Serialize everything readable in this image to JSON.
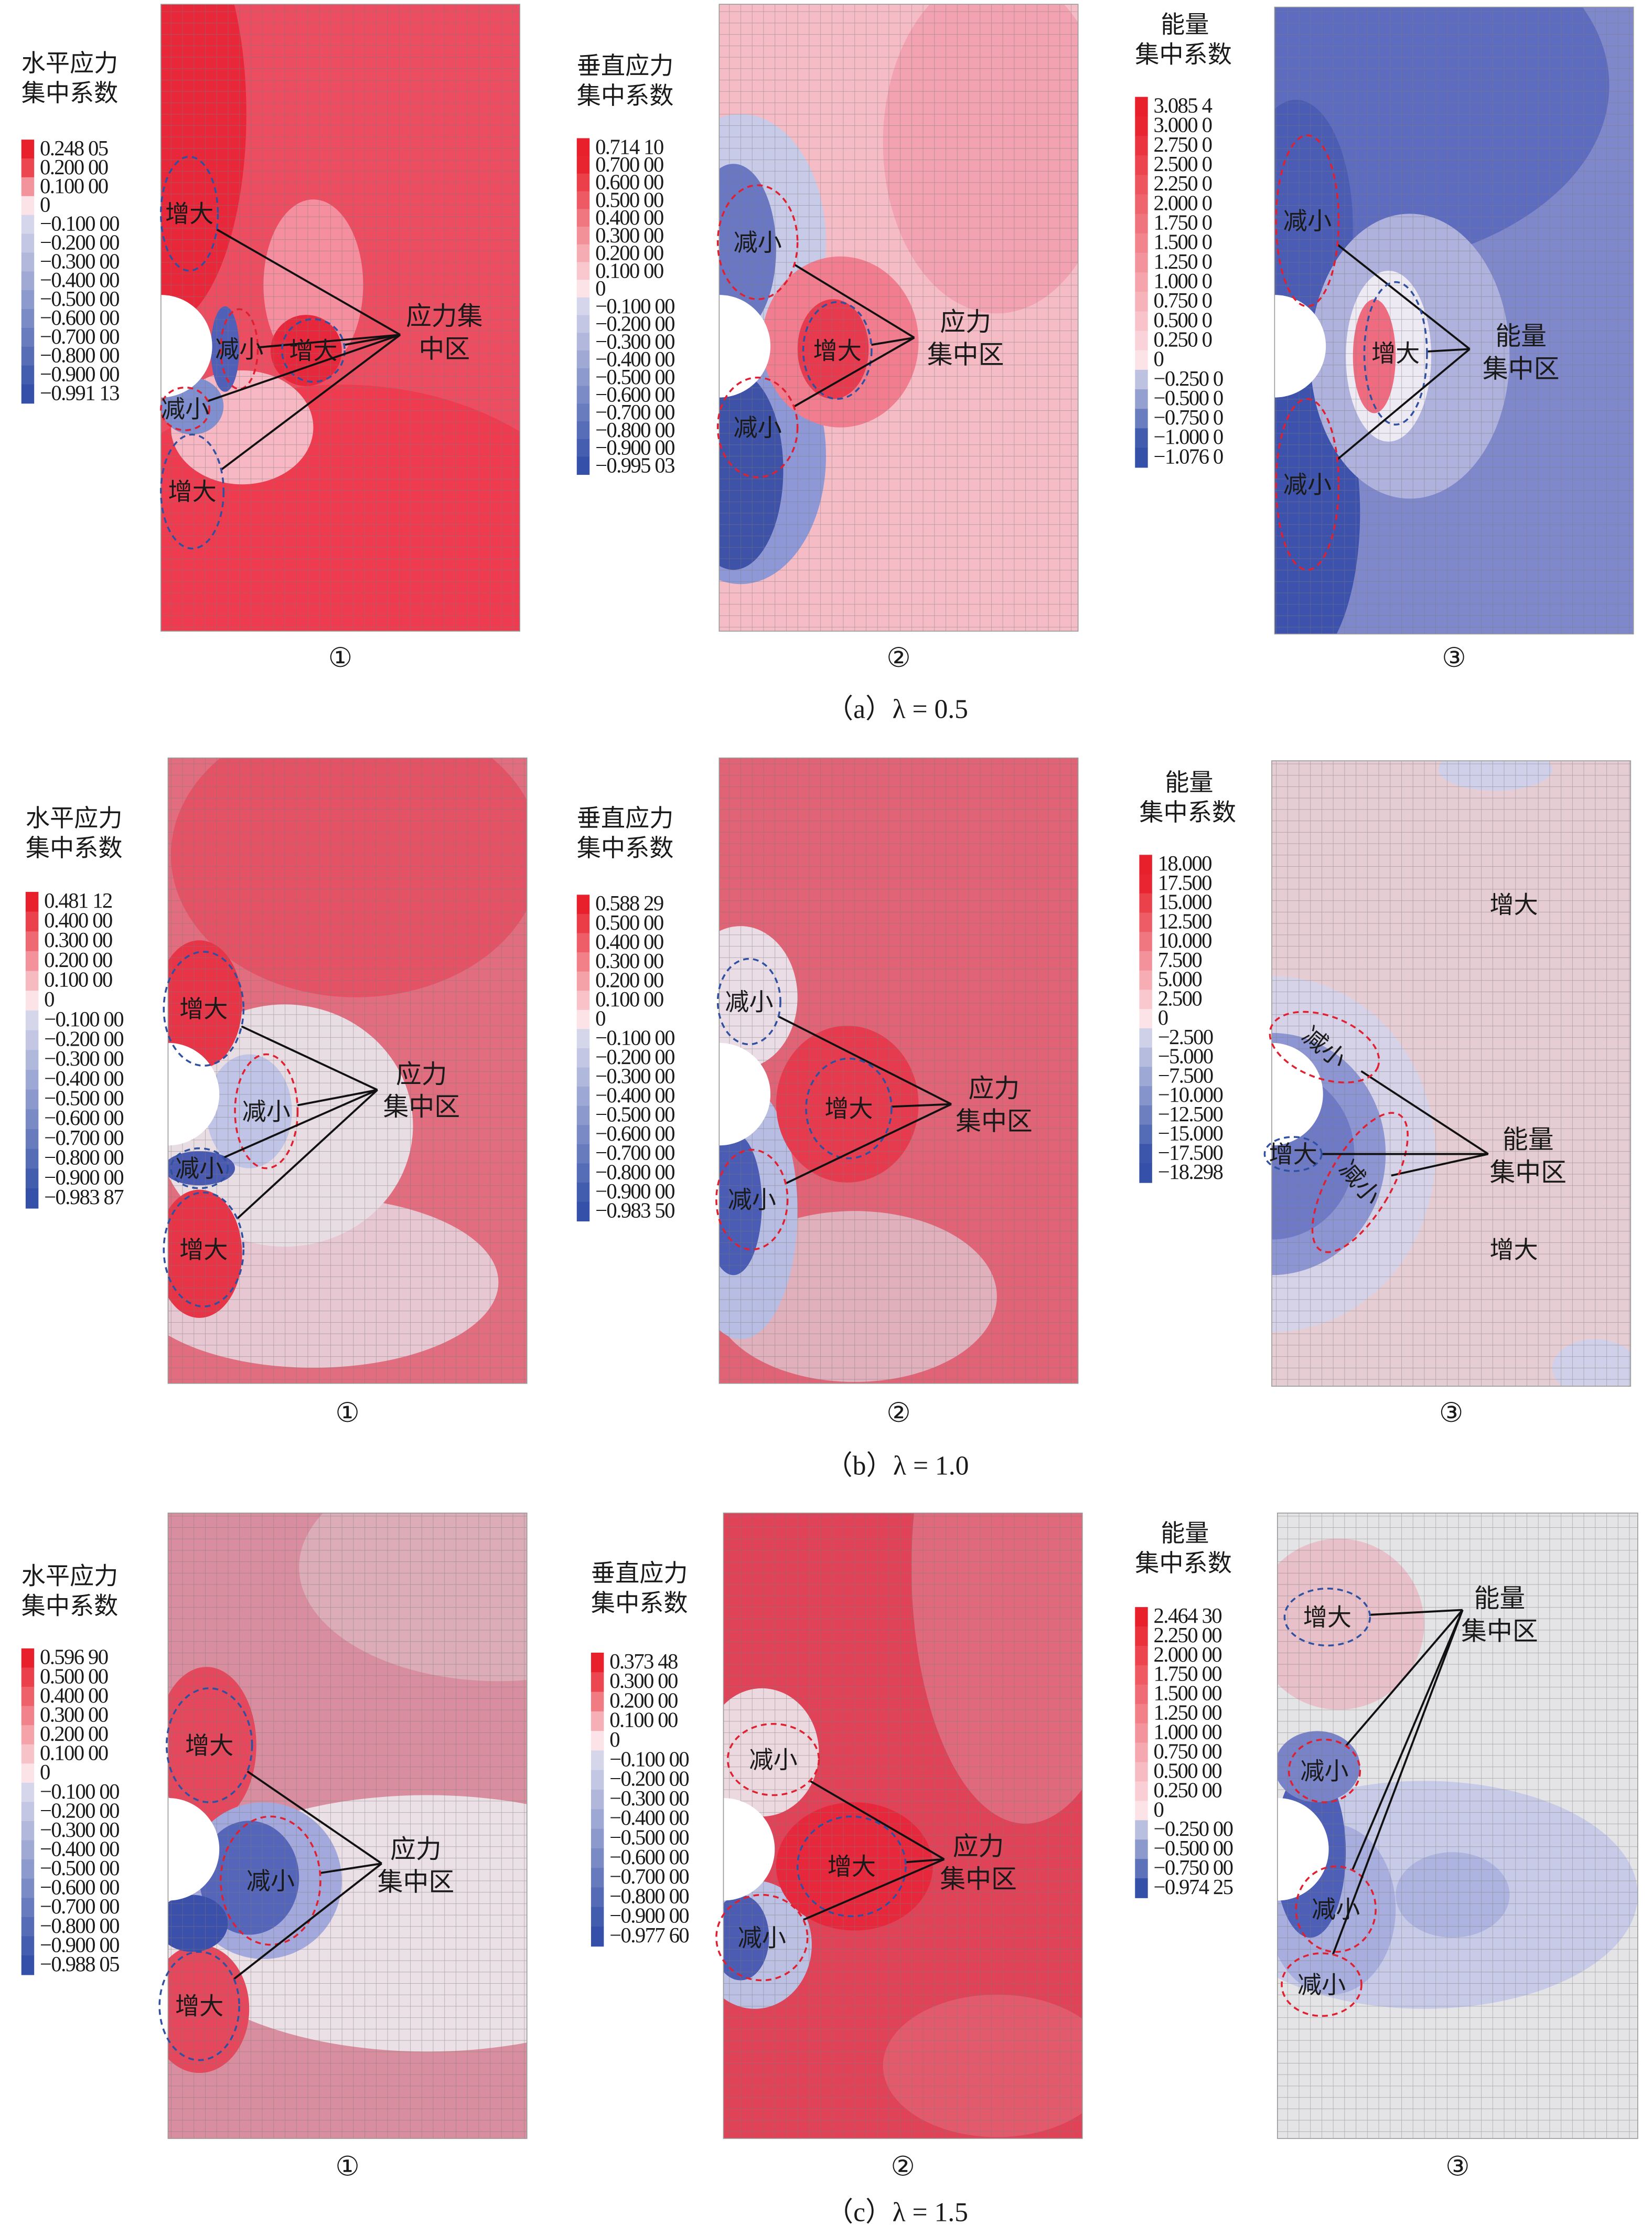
{
  "ring_colors": {
    "red": "#e02030",
    "blue": "#3050a0"
  },
  "rows": [
    {
      "caption": "（a）λ = 0.5",
      "panels": [
        {
          "number": "①",
          "background": "#ec4d61",
          "legend": {
            "title": [
              "水平应力",
              "集中系数"
            ],
            "ticks": [
              "0.248 05",
              "0.200 00",
              "0.100 00",
              "0",
              "−0.100 00",
              "−0.200 00",
              "−0.300 00",
              "−0.400 00",
              "−0.500 00",
              "−0.600 00",
              "−0.700 00",
              "−0.800 00",
              "−0.900 00",
              "−0.991 13"
            ]
          },
          "annotations": [
            {
              "text": "增大",
              "ring": "blue"
            },
            {
              "text": "减小",
              "ring": "red"
            },
            {
              "text": "增大",
              "ring": "blue"
            },
            {
              "text": "减小",
              "ring": "red"
            },
            {
              "text": "增大",
              "ring": "blue"
            }
          ],
          "zone_label": [
            "应力集",
            "中区"
          ]
        },
        {
          "number": "②",
          "background": "#f6bcc6",
          "legend": {
            "title": [
              "垂直应力",
              "集中系数"
            ],
            "ticks": [
              "0.714 10",
              "0.700 00",
              "0.600 00",
              "0.500 00",
              "0.400 00",
              "0.300 00",
              "0.200 00",
              "0.100 00",
              "0",
              "−0.100 00",
              "−0.200 00",
              "−0.300 00",
              "−0.400 00",
              "−0.500 00",
              "−0.600 00",
              "−0.700 00",
              "−0.800 00",
              "−0.900 00",
              "−0.995 03"
            ]
          },
          "annotations": [
            {
              "text": "减小",
              "ring": "red"
            },
            {
              "text": "增大",
              "ring": "blue"
            },
            {
              "text": "减小",
              "ring": "red"
            }
          ],
          "zone_label": [
            "应力",
            "集中区"
          ]
        },
        {
          "number": "③",
          "background": "#8088cc",
          "legend": {
            "title": [
              "能量",
              "集中系数"
            ],
            "ticks": [
              "3.085 4",
              "3.000 0",
              "2.750 0",
              "2.500 0",
              "2.250 0",
              "2.000 0",
              "1.750 0",
              "1.500 0",
              "1.250 0",
              "1.000 0",
              "0.750 0",
              "0.500 0",
              "0.250 0",
              "0",
              "−0.250 0",
              "−0.500 0",
              "−0.750 0",
              "−1.000 0",
              "−1.076 0"
            ]
          },
          "annotations": [
            {
              "text": "减小",
              "ring": "red"
            },
            {
              "text": "增大",
              "ring": "blue"
            },
            {
              "text": "减小",
              "ring": "red"
            }
          ],
          "zone_label": [
            "能量",
            "集中区"
          ]
        }
      ]
    },
    {
      "caption": "（b）λ = 1.0",
      "panels": [
        {
          "number": "①",
          "background": "#e16d7f",
          "legend": {
            "title": [
              "水平应力",
              "集中系数"
            ],
            "ticks": [
              "0.481 12",
              "0.400 00",
              "0.300 00",
              "0.200 00",
              "0.100 00",
              "0",
              "−0.100 00",
              "−0.200 00",
              "−0.300 00",
              "−0.400 00",
              "−0.500 00",
              "−0.600 00",
              "−0.700 00",
              "−0.800 00",
              "−0.900 00",
              "−0.983 87"
            ]
          },
          "annotations": [
            {
              "text": "增大",
              "ring": "blue"
            },
            {
              "text": "减小",
              "ring": "red"
            },
            {
              "text": "减小",
              "ring": "blue"
            },
            {
              "text": "增大",
              "ring": "blue"
            }
          ],
          "zone_label": [
            "应力",
            "集中区"
          ]
        },
        {
          "number": "②",
          "background": "#e06376",
          "legend": {
            "title": [
              "垂直应力",
              "集中系数"
            ],
            "ticks": [
              "0.588 29",
              "0.500 00",
              "0.400 00",
              "0.300 00",
              "0.200 00",
              "0.100 00",
              "0",
              "−0.100 00",
              "−0.200 00",
              "−0.300 00",
              "−0.400 00",
              "−0.500 00",
              "−0.600 00",
              "−0.700 00",
              "−0.800 00",
              "−0.900 00",
              "−0.983 50"
            ]
          },
          "annotations": [
            {
              "text": "减小",
              "ring": "blue"
            },
            {
              "text": "增大",
              "ring": "blue"
            },
            {
              "text": "减小",
              "ring": "red"
            }
          ],
          "zone_label": [
            "应力",
            "集中区"
          ]
        },
        {
          "number": "③",
          "background": "#e6cdd3",
          "legend": {
            "title": [
              "能量",
              "集中系数"
            ],
            "ticks": [
              "18.000",
              "17.500",
              "15.000",
              "12.500",
              "10.000",
              "7.500",
              "5.000",
              "2.500",
              "0",
              "−2.500",
              "−5.000",
              "−7.500",
              "−10.000",
              "−12.500",
              "−15.000",
              "−17.500",
              "−18.298"
            ]
          },
          "annotations": [
            {
              "text": "减小",
              "ring": "red"
            },
            {
              "text": "减小",
              "ring": "red"
            },
            {
              "text": "增大",
              "ring": "blue"
            },
            {
              "text": "增大",
              "ring": null
            },
            {
              "text": "增大",
              "ring": null
            }
          ],
          "zone_label": [
            "能量",
            "集中区"
          ]
        }
      ]
    },
    {
      "caption": "（c）λ = 1.5",
      "panels": [
        {
          "number": "①",
          "background": "#d98e9f",
          "legend": {
            "title": [
              "水平应力",
              "集中系数"
            ],
            "ticks": [
              "0.596 90",
              "0.500 00",
              "0.400 00",
              "0.300 00",
              "0.200 00",
              "0.100 00",
              "0",
              "−0.100 00",
              "−0.200 00",
              "−0.300 00",
              "−0.400 00",
              "−0.500 00",
              "−0.600 00",
              "−0.700 00",
              "−0.800 00",
              "−0.900 00",
              "−0.988 05"
            ]
          },
          "annotations": [
            {
              "text": "增大",
              "ring": "blue"
            },
            {
              "text": "减小",
              "ring": "red"
            },
            {
              "text": "增大",
              "ring": "blue"
            }
          ],
          "zone_label": [
            "应力",
            "集中区"
          ]
        },
        {
          "number": "②",
          "background": "#e04257",
          "legend": {
            "title": [
              "垂直应力",
              "集中系数"
            ],
            "ticks": [
              "0.373 48",
              "0.300 00",
              "0.200 00",
              "0.100 00",
              "0",
              "−0.100 00",
              "−0.200 00",
              "−0.300 00",
              "−0.400 00",
              "−0.500 00",
              "−0.600 00",
              "−0.700 00",
              "−0.800 00",
              "−0.900 00",
              "−0.977 60"
            ]
          },
          "annotations": [
            {
              "text": "减小",
              "ring": "red"
            },
            {
              "text": "增大",
              "ring": "blue"
            },
            {
              "text": "减小",
              "ring": "red"
            }
          ],
          "zone_label": [
            "应力",
            "集中区"
          ]
        },
        {
          "number": "③",
          "background": "#e4e4e6",
          "legend": {
            "title": [
              "能量",
              "集中系数"
            ],
            "ticks": [
              "2.464 30",
              "2.250 00",
              "2.000 00",
              "1.750 00",
              "1.500 00",
              "1.250 00",
              "1.000 00",
              "0.750 00",
              "0.500 00",
              "0.250 00",
              "0",
              "−0.250 00",
              "−0.500 00",
              "−0.750 00",
              "−0.974 25"
            ]
          },
          "annotations": [
            {
              "text": "增大",
              "ring": "blue"
            },
            {
              "text": "减小",
              "ring": "red"
            },
            {
              "text": "减小",
              "ring": "red"
            },
            {
              "text": "减小",
              "ring": "red"
            }
          ],
          "zone_label": [
            "能量",
            "集中区"
          ]
        }
      ]
    }
  ]
}
